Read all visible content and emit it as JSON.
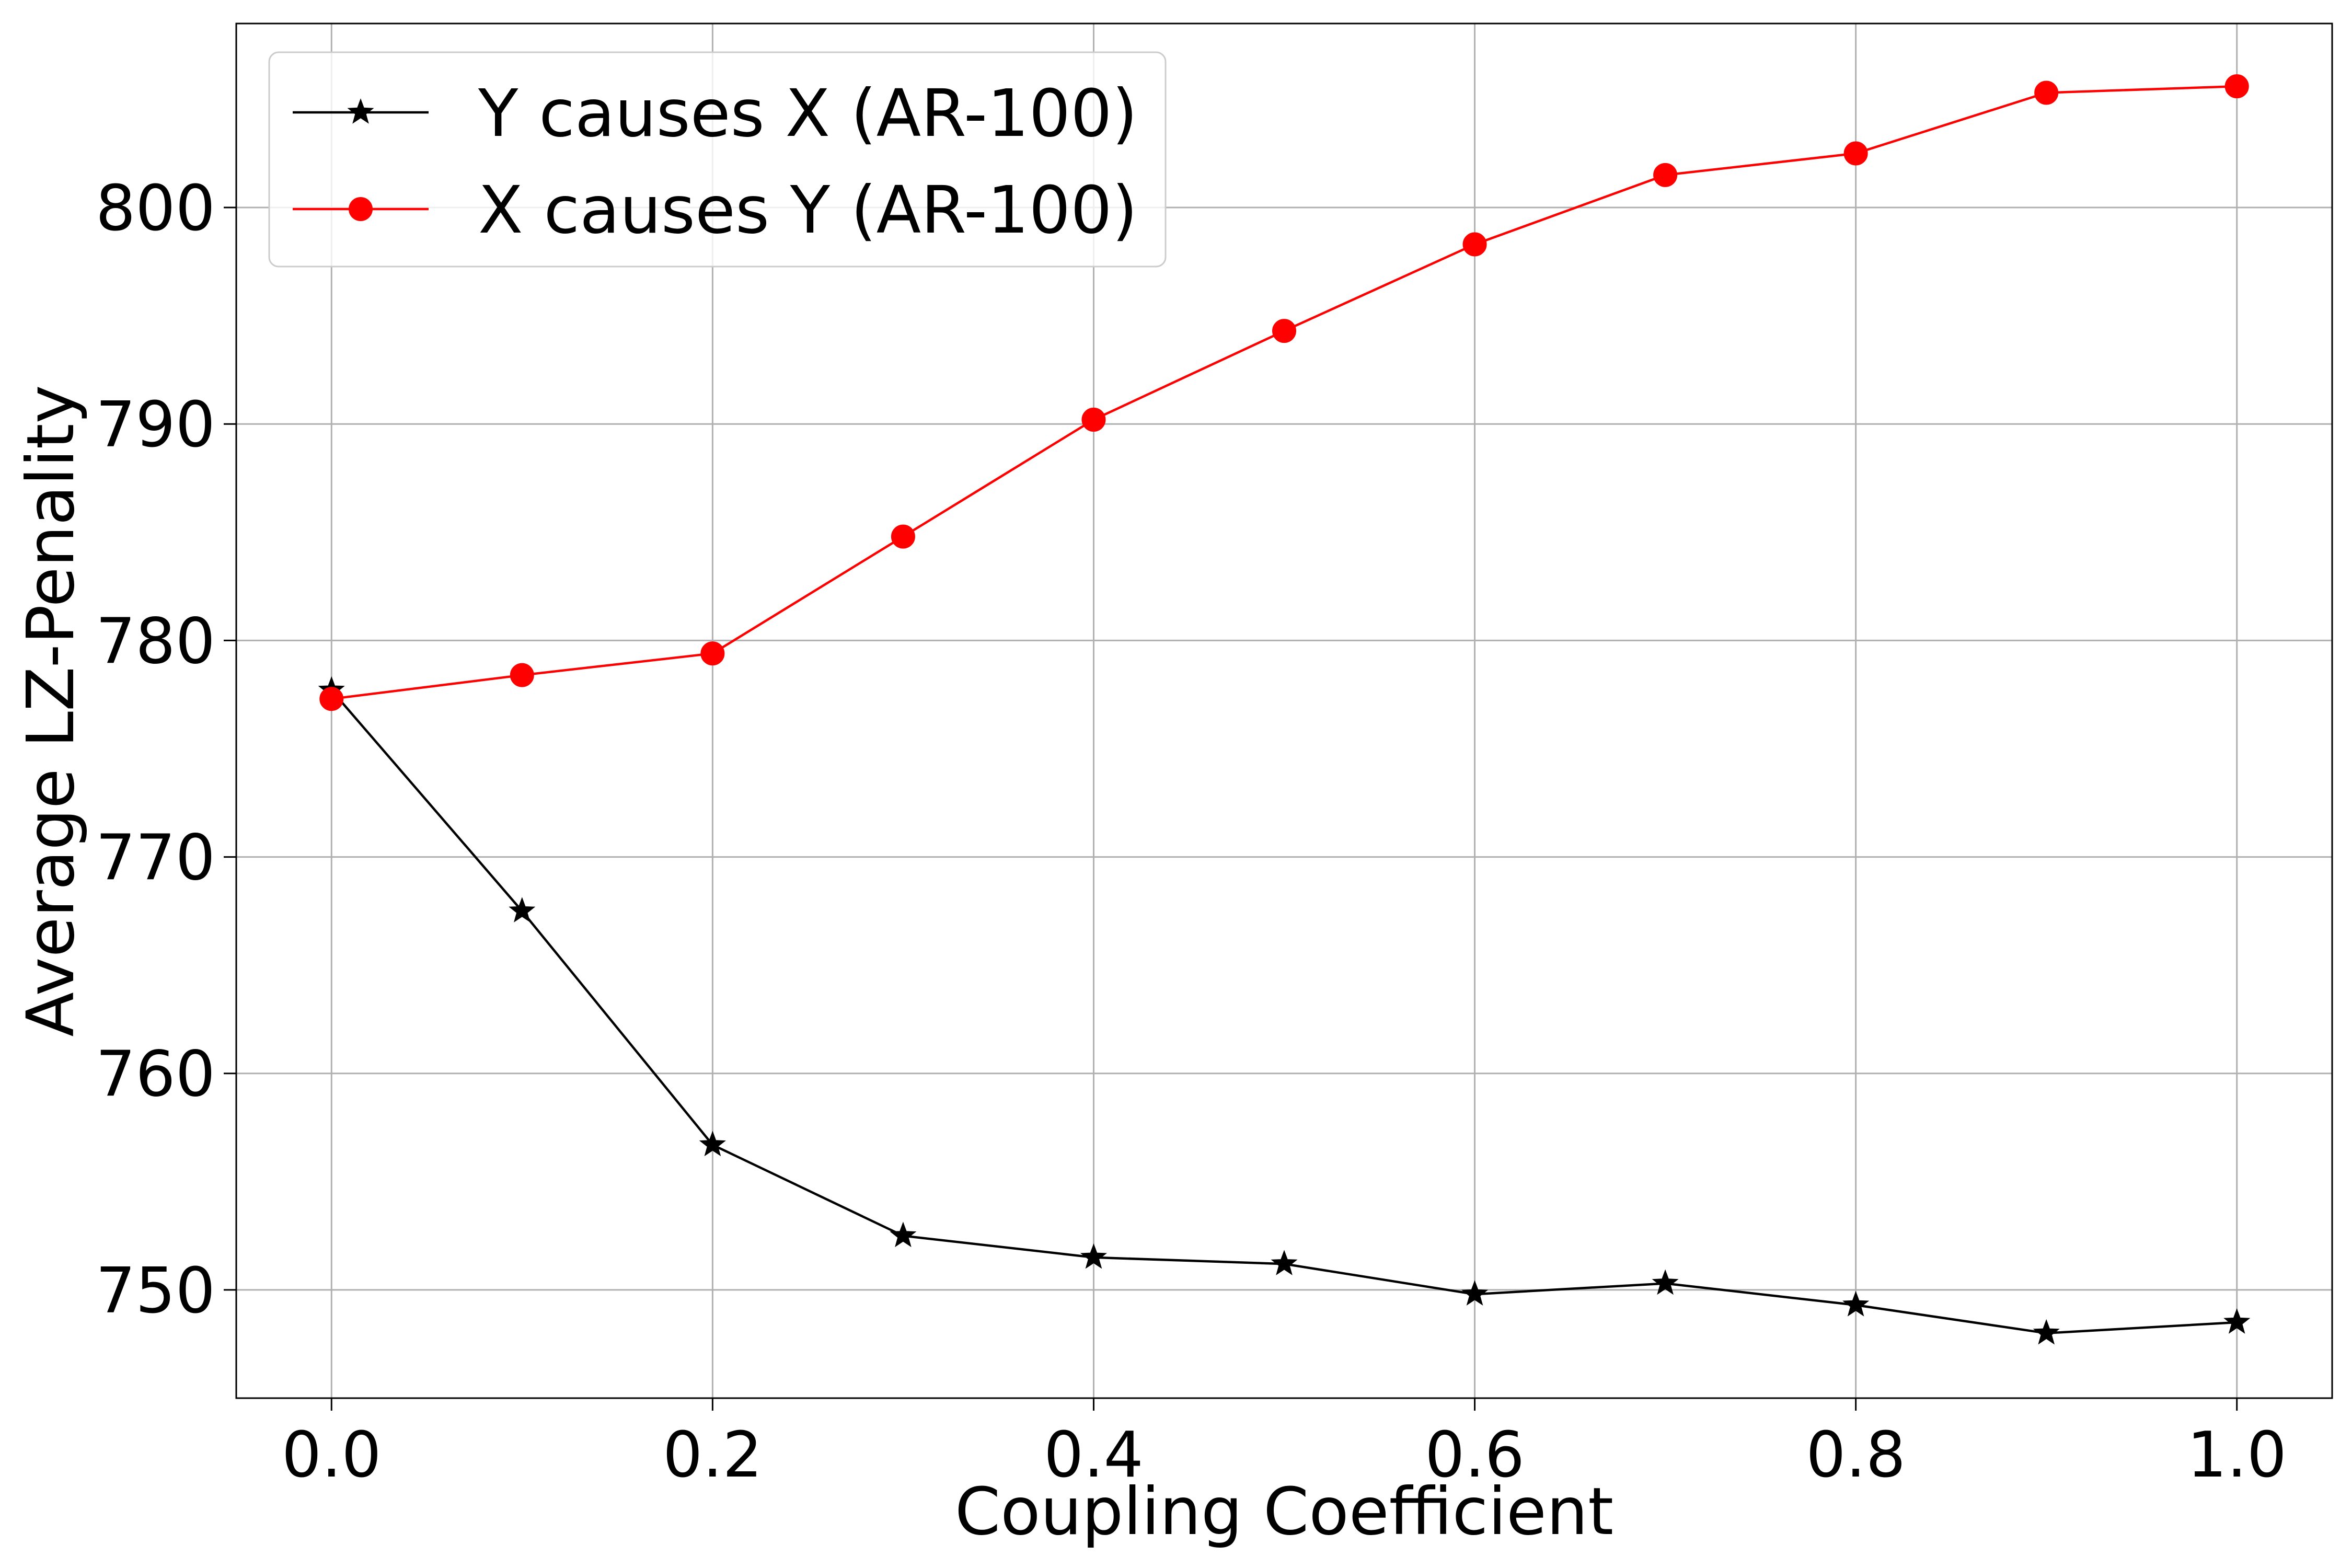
{
  "chart_data": {
    "type": "line",
    "title": "",
    "xlabel": "Coupling Coefficient",
    "ylabel": "Average LZ-Penality",
    "xlim": [
      -0.05,
      1.05
    ],
    "ylim": [
      745,
      808.5
    ],
    "xticks": [
      0.0,
      0.2,
      0.4,
      0.6,
      0.8,
      1.0
    ],
    "xtick_labels": [
      "0.0",
      "0.2",
      "0.4",
      "0.6",
      "0.8",
      "1.0"
    ],
    "yticks": [
      750,
      760,
      770,
      780,
      790,
      800
    ],
    "ytick_labels": [
      "750",
      "760",
      "770",
      "780",
      "790",
      "800"
    ],
    "grid": true,
    "legend_position": "top-left",
    "x": [
      0.0,
      0.1,
      0.2,
      0.3,
      0.4,
      0.5,
      0.6,
      0.7,
      0.8,
      0.9,
      1.0
    ],
    "series": [
      {
        "name": "Y causes X (AR-100)",
        "color": "#000000",
        "marker": "star",
        "values": [
          777.7,
          767.5,
          756.7,
          752.5,
          751.5,
          751.2,
          749.8,
          750.3,
          749.3,
          748.0,
          748.5
        ]
      },
      {
        "name": "X causes Y (AR-100)",
        "color": "#ff0000",
        "marker": "circle",
        "values": [
          777.3,
          778.4,
          779.4,
          784.8,
          790.2,
          794.3,
          798.3,
          801.5,
          802.5,
          805.3,
          805.6
        ]
      }
    ]
  }
}
